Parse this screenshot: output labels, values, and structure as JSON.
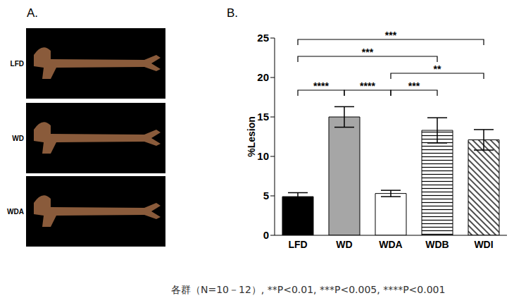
{
  "panel_a": {
    "label": "A.",
    "rows": [
      "LFD",
      "WD",
      "WDA"
    ]
  },
  "chart_data": {
    "type": "bar",
    "title": "B.",
    "categories": [
      "LFD",
      "WD",
      "WDA",
      "WDB",
      "WDI"
    ],
    "values": [
      4.9,
      15.0,
      5.3,
      13.3,
      12.1
    ],
    "errors": [
      0.5,
      1.3,
      0.4,
      1.6,
      1.3
    ],
    "colors": [
      "#000000",
      "#a6a6a6",
      "#ffffff",
      "#ffffff",
      "#ffffff"
    ],
    "ylabel": "%Lesion",
    "ylim": [
      0,
      25
    ],
    "yticks": [
      0,
      5,
      10,
      15,
      20,
      25
    ],
    "annotations": [
      {
        "from": "LFD",
        "to": "WD",
        "label": "****"
      },
      {
        "from": "WD",
        "to": "WDA",
        "label": "****"
      },
      {
        "from": "WDA",
        "to": "WDB",
        "label": "***"
      },
      {
        "from": "WDA",
        "to": "WDI",
        "label": "**"
      },
      {
        "from": "LFD",
        "to": "WDB",
        "label": "***"
      },
      {
        "from": "LFD",
        "to": "WDI",
        "label": "***"
      }
    ]
  },
  "footnote": "各群（N=10－12）, **P<0.01, ***P<0.005, ****P<0.001"
}
